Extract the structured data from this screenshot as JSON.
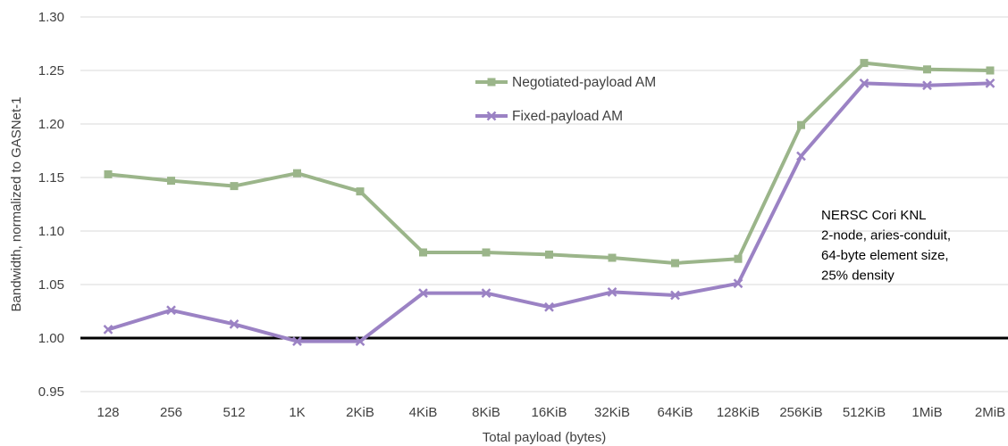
{
  "chart_data": {
    "type": "line",
    "title": "",
    "xlabel": "Total payload (bytes)",
    "ylabel": "Bandwidth, normalized to GASNet-1",
    "ylim": [
      0.95,
      1.3
    ],
    "yticks": [
      "0.95",
      "1.00",
      "1.05",
      "1.10",
      "1.15",
      "1.20",
      "1.25",
      "1.30"
    ],
    "grid": "horizontal",
    "legend_position": "top-center",
    "baseline": 1.0,
    "categories": [
      "128",
      "256",
      "512",
      "1K",
      "2KiB",
      "4KiB",
      "8KiB",
      "16KiB",
      "32KiB",
      "64KiB",
      "128KiB",
      "256KiB",
      "512KiB",
      "1MiB",
      "2MiB"
    ],
    "series": [
      {
        "name": "Negotiated-payload AM",
        "color": "#9bb58a",
        "marker": "square",
        "values": [
          1.153,
          1.147,
          1.142,
          1.154,
          1.137,
          1.08,
          1.08,
          1.078,
          1.075,
          1.07,
          1.074,
          1.199,
          1.257,
          1.251,
          1.25
        ]
      },
      {
        "name": "Fixed-payload AM",
        "color": "#9b82c4",
        "marker": "x",
        "values": [
          1.008,
          1.026,
          1.013,
          0.997,
          0.997,
          1.042,
          1.042,
          1.029,
          1.043,
          1.04,
          1.051,
          1.17,
          1.238,
          1.236,
          1.238
        ]
      }
    ],
    "annotation": [
      "NERSC Cori KNL",
      "2-node, aries-conduit,",
      "64-byte element size,",
      "25% density"
    ]
  }
}
